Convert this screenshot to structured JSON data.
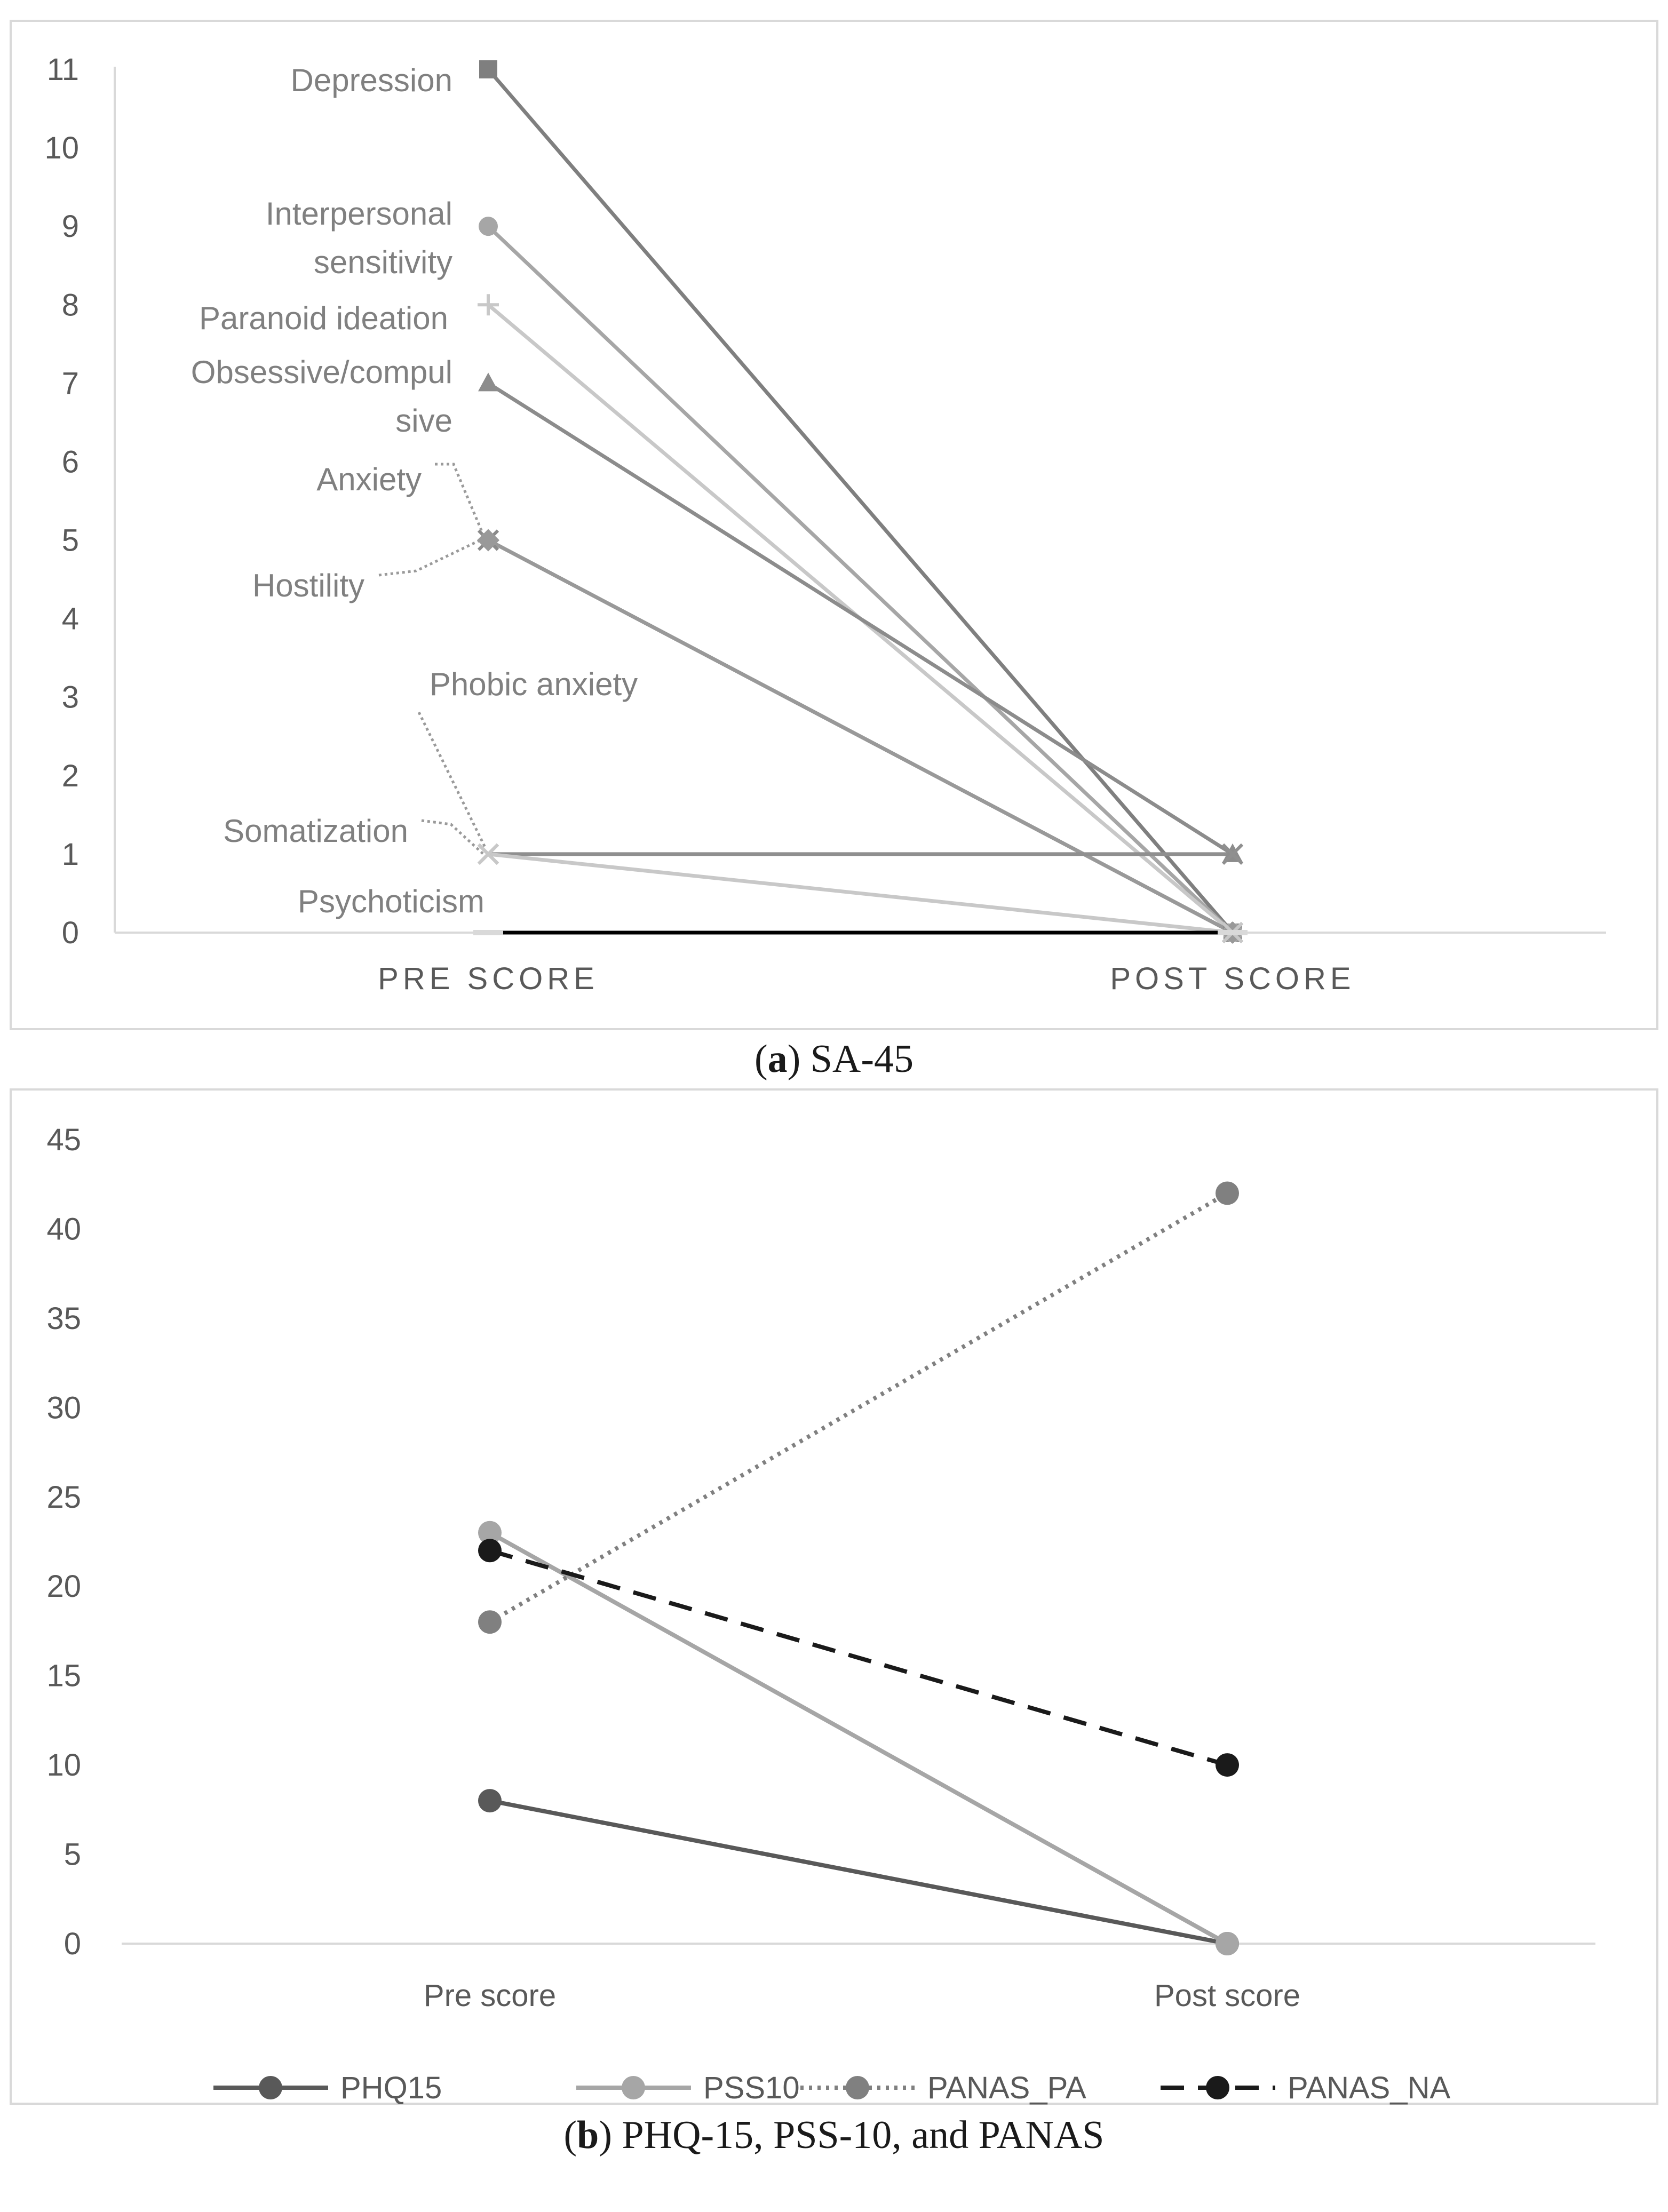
{
  "chart_data": [
    {
      "type": "line",
      "panel": "a",
      "caption_letter": "a",
      "caption_text": " SA-45",
      "categories": [
        "PRE SCORE",
        "POST SCORE"
      ],
      "ylim": [
        0,
        11
      ],
      "yticks": [
        0,
        1,
        2,
        3,
        4,
        5,
        6,
        7,
        8,
        9,
        10,
        11
      ],
      "series": [
        {
          "name": "Depression",
          "label_lines": [
            "Depression"
          ],
          "values": [
            11,
            0
          ],
          "color": "#7f7f7f",
          "marker": "square"
        },
        {
          "name": "Interpersonal sensitivity",
          "label_lines": [
            "Interpersonal",
            "sensitivity"
          ],
          "values": [
            9,
            0
          ],
          "color": "#a6a6a6",
          "marker": "circle"
        },
        {
          "name": "Paranoid ideation",
          "label_lines": [
            "Paranoid ideation"
          ],
          "values": [
            8,
            0
          ],
          "color": "#c8c8c8",
          "marker": "plus"
        },
        {
          "name": "Obsessive/compulsive",
          "label_lines": [
            "Obsessive/compul",
            "sive"
          ],
          "values": [
            7,
            1
          ],
          "color": "#8c8c8c",
          "marker": "triangle"
        },
        {
          "name": "Anxiety",
          "label_lines": [
            "Anxiety"
          ],
          "values": [
            5,
            0
          ],
          "color": "#8a8a8a",
          "marker": "x"
        },
        {
          "name": "Hostility",
          "label_lines": [
            "Hostility"
          ],
          "values": [
            5,
            0
          ],
          "color": "#999999",
          "marker": "diamond"
        },
        {
          "name": "Phobic anxiety",
          "label_lines": [
            "Phobic anxiety"
          ],
          "values": [
            1,
            1
          ],
          "color": "#8f8f8f",
          "marker": "x"
        },
        {
          "name": "Somatization",
          "label_lines": [
            "Somatization"
          ],
          "values": [
            1,
            0
          ],
          "color": "#c8c8c8",
          "marker": "x"
        },
        {
          "name": "Psychoticism",
          "label_lines": [
            "Psychoticism"
          ],
          "values": [
            0,
            0
          ],
          "color": "#000000",
          "marker": "dash"
        }
      ]
    },
    {
      "type": "line",
      "panel": "b",
      "caption_letter": "b",
      "caption_text": " PHQ-15, PSS-10, and PANAS",
      "categories": [
        "Pre score",
        "Post score"
      ],
      "ylim": [
        0,
        45
      ],
      "yticks": [
        0,
        5,
        10,
        15,
        20,
        25,
        30,
        35,
        40,
        45
      ],
      "series": [
        {
          "name": "PHQ15",
          "values": [
            8,
            0
          ],
          "color": "#595959",
          "dash": "solid"
        },
        {
          "name": "PSS10",
          "values": [
            23,
            0
          ],
          "color": "#a6a6a6",
          "dash": "solid"
        },
        {
          "name": "PANAS_PA",
          "values": [
            18,
            42
          ],
          "color": "#808080",
          "dash": "dotted"
        },
        {
          "name": "PANAS_NA",
          "values": [
            22,
            10
          ],
          "color": "#1a1a1a",
          "dash": "dashed"
        }
      ],
      "legend_position": "bottom"
    }
  ]
}
